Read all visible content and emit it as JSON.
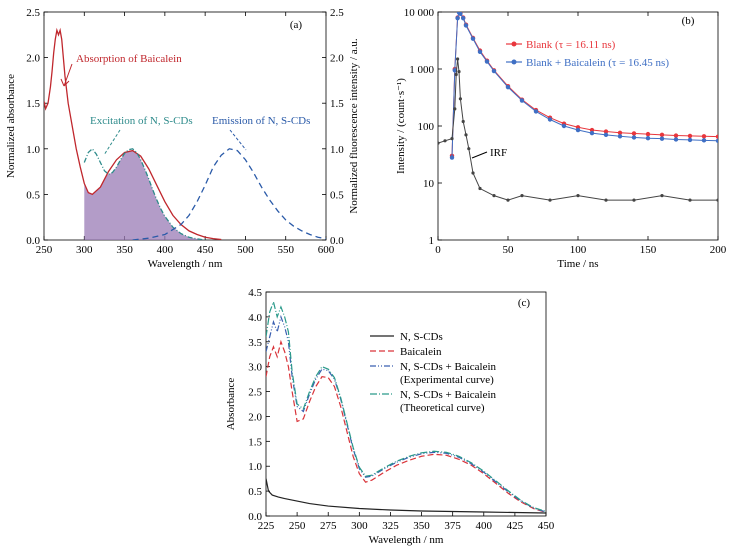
{
  "chart_data": [
    {
      "panel": "(a)",
      "type": "line",
      "xlabel": "Wavelength / nm",
      "ylabel": "Normalized absorbance",
      "y2label": "Normalized fluorescence intensity / a.u.",
      "xlim": [
        250,
        600
      ],
      "ylim": [
        0,
        2.5
      ],
      "y2lim": [
        0,
        2.5
      ],
      "xticks": [
        "250",
        "300",
        "350",
        "400",
        "450",
        "500",
        "550",
        "600"
      ],
      "yticks": [
        "0.0",
        "0.5",
        "1.0",
        "1.5",
        "2.0",
        "2.5"
      ],
      "y2ticks": [
        "0.0",
        "0.5",
        "1.0",
        "1.5",
        "2.0",
        "2.5"
      ],
      "annotations": [
        "Absorption of Baicalein",
        "Excitation of N, S-CDs",
        "Emission of N, S-CDs"
      ],
      "colors": {
        "absorption": "#c0272d",
        "excitation": "#2e8b8b",
        "emission": "#2a5aa8",
        "overlap_fill": "#9a7bb5"
      },
      "series": [
        {
          "name": "Absorption of Baicalein",
          "x": [
            250,
            252,
            255,
            258,
            260,
            262,
            264,
            266,
            268,
            270,
            272,
            274,
            276,
            278,
            280,
            285,
            290,
            295,
            300,
            305,
            310,
            320,
            330,
            340,
            350,
            360,
            370,
            380,
            390,
            400,
            410,
            420,
            430,
            440,
            450,
            460,
            470
          ],
          "y": [
            1.52,
            1.44,
            1.5,
            1.68,
            1.85,
            2.05,
            2.2,
            2.3,
            2.25,
            2.3,
            2.2,
            2.0,
            1.8,
            1.65,
            1.5,
            1.25,
            1.0,
            0.8,
            0.62,
            0.52,
            0.5,
            0.58,
            0.75,
            0.88,
            0.96,
            0.98,
            0.92,
            0.78,
            0.6,
            0.42,
            0.27,
            0.17,
            0.1,
            0.06,
            0.03,
            0.015,
            0.005
          ]
        },
        {
          "name": "Excitation of N, S-CDs",
          "x": [
            300,
            305,
            310,
            315,
            320,
            325,
            330,
            335,
            340,
            345,
            350,
            355,
            360,
            365,
            370,
            375,
            380,
            385,
            390,
            395,
            400,
            410,
            420,
            430,
            440,
            450
          ],
          "y": [
            0.85,
            0.96,
            1.0,
            0.94,
            0.85,
            0.76,
            0.72,
            0.74,
            0.8,
            0.88,
            0.95,
            0.99,
            1.0,
            0.96,
            0.88,
            0.78,
            0.67,
            0.55,
            0.44,
            0.34,
            0.26,
            0.14,
            0.07,
            0.03,
            0.012,
            0.0
          ]
        },
        {
          "name": "Emission of N, S-CDs",
          "x": [
            360,
            380,
            400,
            420,
            430,
            440,
            450,
            460,
            470,
            480,
            490,
            500,
            510,
            520,
            530,
            540,
            550,
            560,
            570,
            580,
            590,
            600
          ],
          "y": [
            0.0,
            0.02,
            0.06,
            0.17,
            0.27,
            0.42,
            0.6,
            0.8,
            0.93,
            1.0,
            0.98,
            0.88,
            0.74,
            0.58,
            0.44,
            0.32,
            0.22,
            0.15,
            0.1,
            0.06,
            0.03,
            0.015
          ]
        }
      ]
    },
    {
      "panel": "(b)",
      "type": "scatter",
      "xlabel": "Time / ns",
      "ylabel": "Intensity / (count·s⁻¹)",
      "xlim": [
        0,
        200
      ],
      "ylim": [
        1,
        10000
      ],
      "yscale": "log",
      "xticks": [
        "0",
        "50",
        "100",
        "150",
        "200"
      ],
      "yticks": [
        "1",
        "10",
        "100",
        "1 000",
        "10 000"
      ],
      "annotations": [
        "IRF"
      ],
      "legend": "top-right",
      "colors": {
        "blank": "#e8363c",
        "blank_baicalein": "#3f6fc4",
        "irf": "#444444"
      },
      "series": [
        {
          "name": "Blank (τ = 16.11 ns)",
          "x": [
            10,
            12,
            14,
            15,
            16,
            18,
            20,
            25,
            30,
            35,
            40,
            50,
            60,
            70,
            80,
            90,
            100,
            110,
            120,
            130,
            140,
            150,
            160,
            170,
            180,
            190,
            200
          ],
          "y": [
            30,
            1000,
            8000,
            10000,
            9500,
            8000,
            6000,
            3500,
            2100,
            1400,
            950,
            500,
            290,
            190,
            140,
            110,
            95,
            85,
            80,
            76,
            74,
            72,
            70,
            68,
            67,
            66,
            65
          ]
        },
        {
          "name": "Blank + Baicalein (τ = 16.45 ns)",
          "x": [
            10,
            12,
            14,
            15,
            16,
            18,
            20,
            25,
            30,
            35,
            40,
            50,
            60,
            70,
            80,
            90,
            100,
            110,
            120,
            130,
            140,
            150,
            160,
            170,
            180,
            190,
            200
          ],
          "y": [
            28,
            950,
            7800,
            9800,
            9300,
            7800,
            5800,
            3400,
            2000,
            1350,
            920,
            480,
            280,
            180,
            130,
            100,
            85,
            75,
            70,
            66,
            63,
            61,
            60,
            58,
            57,
            56,
            55
          ]
        },
        {
          "name": "IRF",
          "x": [
            0,
            5,
            10,
            12,
            13,
            14,
            15,
            16,
            18,
            20,
            22,
            25,
            30,
            40,
            50,
            60,
            80,
            100,
            120,
            140,
            160,
            180,
            200
          ],
          "y": [
            50,
            55,
            60,
            200,
            800,
            1500,
            900,
            300,
            120,
            70,
            40,
            15,
            8,
            6,
            5,
            6,
            5,
            6,
            5,
            5,
            6,
            5,
            5
          ]
        }
      ]
    },
    {
      "panel": "(c)",
      "type": "line",
      "xlabel": "Wavelength / nm",
      "ylabel": "Absorbance",
      "xlim": [
        225,
        450
      ],
      "ylim": [
        0,
        4.5
      ],
      "xticks": [
        "225",
        "250",
        "275",
        "300",
        "325",
        "350",
        "375",
        "400",
        "425",
        "450"
      ],
      "yticks": [
        "0.0",
        "0.5",
        "1.0",
        "1.5",
        "2.0",
        "2.5",
        "3.0",
        "3.5",
        "4.0",
        "4.5"
      ],
      "legend": "right",
      "colors": {
        "ns_cds": "#222222",
        "baicalein": "#d9343a",
        "experimental": "#3a5fb0",
        "theoretical": "#2a9a8a"
      },
      "series": [
        {
          "name": "N, S-CDs",
          "x": [
            225,
            227,
            230,
            235,
            240,
            250,
            260,
            275,
            300,
            325,
            350,
            375,
            400,
            425,
            450
          ],
          "y": [
            0.75,
            0.5,
            0.42,
            0.38,
            0.35,
            0.3,
            0.25,
            0.2,
            0.15,
            0.12,
            0.1,
            0.09,
            0.08,
            0.07,
            0.06
          ]
        },
        {
          "name": "Baicalein",
          "x": [
            225,
            228,
            231,
            234,
            237,
            240,
            243,
            246,
            250,
            255,
            260,
            265,
            270,
            275,
            280,
            285,
            290,
            295,
            300,
            305,
            310,
            320,
            330,
            340,
            350,
            360,
            370,
            380,
            390,
            400,
            410,
            420,
            430,
            440,
            450
          ],
          "y": [
            2.8,
            3.2,
            3.4,
            3.2,
            3.5,
            3.3,
            3.0,
            2.5,
            1.9,
            1.95,
            2.3,
            2.6,
            2.8,
            2.78,
            2.6,
            2.2,
            1.7,
            1.2,
            0.85,
            0.68,
            0.72,
            0.88,
            1.02,
            1.12,
            1.2,
            1.24,
            1.22,
            1.14,
            1.02,
            0.85,
            0.65,
            0.45,
            0.28,
            0.15,
            0.07
          ]
        },
        {
          "name": "N, S-CDs + Baicalein (Experimental curve)",
          "x": [
            225,
            228,
            231,
            234,
            237,
            240,
            243,
            246,
            250,
            255,
            260,
            265,
            270,
            275,
            280,
            285,
            290,
            295,
            300,
            305,
            310,
            320,
            330,
            340,
            350,
            360,
            370,
            380,
            390,
            400,
            410,
            420,
            430,
            440,
            450
          ],
          "y": [
            3.3,
            3.6,
            3.9,
            3.7,
            4.0,
            3.8,
            3.5,
            2.8,
            2.2,
            2.1,
            2.45,
            2.75,
            2.95,
            2.92,
            2.75,
            2.35,
            1.85,
            1.35,
            0.95,
            0.78,
            0.8,
            0.95,
            1.08,
            1.18,
            1.25,
            1.28,
            1.26,
            1.18,
            1.05,
            0.88,
            0.68,
            0.48,
            0.3,
            0.16,
            0.08
          ]
        },
        {
          "name": "N, S-CDs + Baicalein (Theoretical curve)",
          "x": [
            225,
            228,
            231,
            234,
            237,
            240,
            243,
            246,
            250,
            255,
            260,
            265,
            270,
            275,
            280,
            285,
            290,
            295,
            300,
            305,
            310,
            320,
            330,
            340,
            350,
            360,
            370,
            380,
            390,
            400,
            410,
            420,
            430,
            440,
            450
          ],
          "y": [
            3.6,
            4.1,
            4.3,
            4.0,
            4.2,
            4.0,
            3.7,
            2.9,
            2.25,
            2.15,
            2.5,
            2.8,
            3.0,
            2.95,
            2.78,
            2.38,
            1.88,
            1.38,
            0.98,
            0.8,
            0.82,
            0.97,
            1.1,
            1.2,
            1.27,
            1.3,
            1.28,
            1.2,
            1.07,
            0.9,
            0.7,
            0.5,
            0.31,
            0.17,
            0.09
          ]
        }
      ]
    }
  ]
}
